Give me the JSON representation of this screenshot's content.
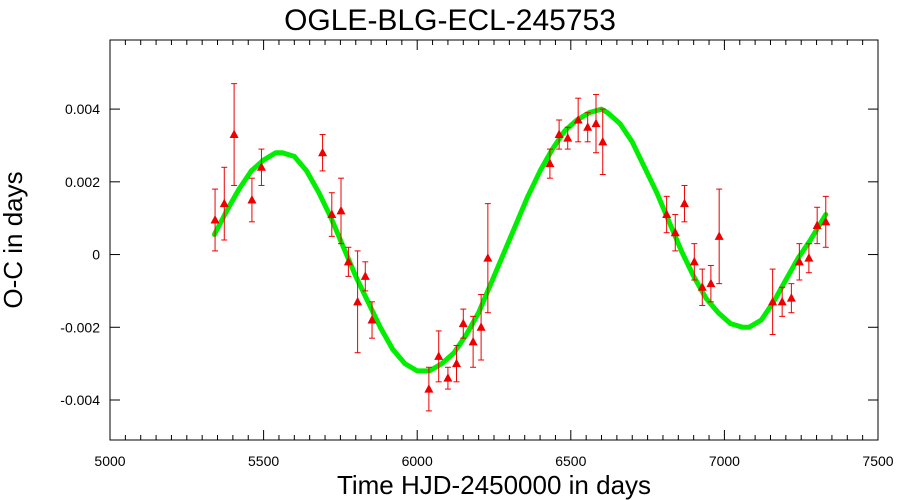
{
  "chart_data": {
    "type": "scatter",
    "title": "OGLE-BLG-ECL-245753",
    "xlabel": "Time HJD-2450000 in days",
    "ylabel": "O-C in days",
    "xlim": [
      5000,
      7500
    ],
    "ylim": [
      -0.0051,
      0.0059
    ],
    "x_ticks": [
      5000,
      5500,
      6000,
      6500,
      7000,
      7500
    ],
    "x_tick_labels": [
      "5000",
      "5500",
      "6000",
      "6500",
      "7000",
      "7500"
    ],
    "y_ticks": [
      -0.004,
      -0.002,
      0,
      0.002,
      0.004
    ],
    "y_tick_labels": [
      "-0.004",
      "-0.002",
      "0",
      "0.002",
      "0.004"
    ],
    "grid": false,
    "colors": {
      "points": "#ee0000",
      "fit": "#00ee00",
      "axes": "#000000"
    },
    "series": [
      {
        "type": "scatter",
        "marker": "triangle",
        "points": [
          {
            "x": 5342,
            "y": 0.00095,
            "err": 0.00085
          },
          {
            "x": 5372,
            "y": 0.0014,
            "err": 0.001
          },
          {
            "x": 5404,
            "y": 0.0033,
            "err": 0.0014
          },
          {
            "x": 5462,
            "y": 0.0015,
            "err": 0.0006
          },
          {
            "x": 5493,
            "y": 0.0024,
            "err": 0.0005
          },
          {
            "x": 5692,
            "y": 0.0028,
            "err": 0.0005
          },
          {
            "x": 5722,
            "y": 0.0011,
            "err": 0.0006
          },
          {
            "x": 5752,
            "y": 0.0012,
            "err": 0.0009
          },
          {
            "x": 5776,
            "y": -0.0002,
            "err": 0.0004
          },
          {
            "x": 5806,
            "y": -0.0013,
            "err": 0.0014
          },
          {
            "x": 5831,
            "y": -0.0006,
            "err": 0.0004
          },
          {
            "x": 5853,
            "y": -0.0018,
            "err": 0.0005
          },
          {
            "x": 6038,
            "y": -0.0037,
            "err": 0.0006
          },
          {
            "x": 6070,
            "y": -0.0028,
            "err": 0.0007
          },
          {
            "x": 6100,
            "y": -0.0034,
            "err": 0.0003
          },
          {
            "x": 6128,
            "y": -0.003,
            "err": 0.0005
          },
          {
            "x": 6150,
            "y": -0.0019,
            "err": 0.0004
          },
          {
            "x": 6182,
            "y": -0.0024,
            "err": 0.0007
          },
          {
            "x": 6208,
            "y": -0.002,
            "err": 0.0009
          },
          {
            "x": 6230,
            "y": -0.0001,
            "err": 0.0015
          },
          {
            "x": 6432,
            "y": 0.0025,
            "err": 0.0004
          },
          {
            "x": 6462,
            "y": 0.0033,
            "err": 0.0004
          },
          {
            "x": 6490,
            "y": 0.0032,
            "err": 0.0003
          },
          {
            "x": 6524,
            "y": 0.0037,
            "err": 0.0006
          },
          {
            "x": 6555,
            "y": 0.0035,
            "err": 0.0004
          },
          {
            "x": 6582,
            "y": 0.0036,
            "err": 0.0008
          },
          {
            "x": 6604,
            "y": 0.0031,
            "err": 0.0009
          },
          {
            "x": 6812,
            "y": 0.0011,
            "err": 0.0005
          },
          {
            "x": 6840,
            "y": 0.0006,
            "err": 0.0005
          },
          {
            "x": 6870,
            "y": 0.0014,
            "err": 0.0005
          },
          {
            "x": 6902,
            "y": -0.0002,
            "err": 0.0005
          },
          {
            "x": 6928,
            "y": -0.0009,
            "err": 0.0005
          },
          {
            "x": 6956,
            "y": -0.0008,
            "err": 0.0005
          },
          {
            "x": 6983,
            "y": 0.0005,
            "err": 0.0013
          },
          {
            "x": 7157,
            "y": -0.0013,
            "err": 0.0009
          },
          {
            "x": 7188,
            "y": -0.0013,
            "err": 0.0004
          },
          {
            "x": 7218,
            "y": -0.0012,
            "err": 0.0004
          },
          {
            "x": 7244,
            "y": -0.0002,
            "err": 0.0005
          },
          {
            "x": 7275,
            "y": -0.0001,
            "err": 0.0004
          },
          {
            "x": 7302,
            "y": 0.0008,
            "err": 0.0005
          },
          {
            "x": 7330,
            "y": 0.0009,
            "err": 0.0007
          }
        ]
      },
      {
        "type": "line",
        "x": [
          5340,
          5380,
          5420,
          5460,
          5500,
          5540,
          5560,
          5600,
          5640,
          5680,
          5720,
          5760,
          5800,
          5840,
          5880,
          5920,
          5960,
          6000,
          6040,
          6080,
          6120,
          6160,
          6200,
          6240,
          6280,
          6320,
          6360,
          6400,
          6440,
          6480,
          6520,
          6560,
          6600,
          6620,
          6660,
          6700,
          6740,
          6780,
          6820,
          6860,
          6900,
          6940,
          6980,
          7020,
          7060,
          7080,
          7120,
          7160,
          7200,
          7240,
          7280,
          7330
        ],
        "y": [
          0.00055,
          0.0012,
          0.0018,
          0.0023,
          0.0026,
          0.0028,
          0.0028,
          0.0027,
          0.0023,
          0.0017,
          0.001,
          0.0002,
          -0.0006,
          -0.0013,
          -0.002,
          -0.0026,
          -0.003,
          -0.0032,
          -0.0032,
          -0.003,
          -0.0027,
          -0.0022,
          -0.0016,
          -0.0008,
          0.0,
          0.0008,
          0.0016,
          0.0023,
          0.0029,
          0.0034,
          0.0037,
          0.0039,
          0.004,
          0.0039,
          0.0036,
          0.0031,
          0.0024,
          0.0017,
          0.0009,
          0.0001,
          -0.0006,
          -0.0012,
          -0.0016,
          -0.0019,
          -0.002,
          -0.002,
          -0.0018,
          -0.0013,
          -0.0007,
          -0.0001,
          0.0004,
          0.0011
        ]
      }
    ]
  }
}
